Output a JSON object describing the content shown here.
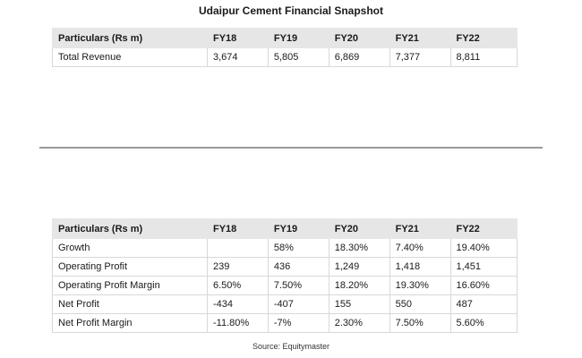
{
  "title": "Udaipur Cement Financial Snapshot",
  "revenue_table": {
    "headers": [
      "Particulars (Rs m)",
      "FY18",
      "FY19",
      "FY20",
      "FY21",
      "FY22"
    ],
    "rows": [
      [
        "Total Revenue",
        "3,674",
        "5,805",
        "6,869",
        "7,377",
        "8,811"
      ]
    ]
  },
  "profit_table": {
    "headers": [
      "Particulars (Rs m)",
      "FY18",
      "FY19",
      "FY20",
      "FY21",
      "FY22"
    ],
    "rows": [
      [
        "Growth",
        "",
        "58%",
        "18.30%",
        "7.40%",
        "19.40%"
      ],
      [
        "Operating Profit",
        "239",
        "436",
        "1,249",
        "1,418",
        "1,451"
      ],
      [
        "Operating Profit Margin",
        "6.50%",
        "7.50%",
        "18.20%",
        "19.30%",
        "16.60%"
      ],
      [
        "Net Profit",
        "-434",
        "-407",
        "155",
        "550",
        "487"
      ],
      [
        "Net Profit Margin",
        "-11.80%",
        "-7%",
        "2.30%",
        "7.50%",
        "5.60%"
      ]
    ]
  },
  "source": "Source: Equitymaster"
}
